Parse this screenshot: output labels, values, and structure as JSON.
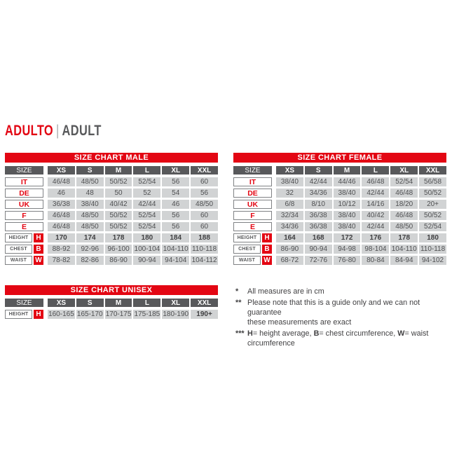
{
  "title": {
    "primary": "ADULTO",
    "separator": "|",
    "secondary": "ADULT"
  },
  "colors": {
    "accent_red": "#e30613",
    "header_gray": "#58595b",
    "cell_gray": "#d1d3d4",
    "value_text_gray": "#4e4f51",
    "notes_text": "#414042",
    "label_border_gray": "#808285"
  },
  "tables": [
    {
      "id": "male",
      "title": "SIZE CHART MALE",
      "corner": "SIZE",
      "columns": [
        "XS",
        "S",
        "M",
        "L",
        "XL",
        "XXL"
      ],
      "size_rows": [
        {
          "label": "IT",
          "values": [
            "46/48",
            "48/50",
            "50/52",
            "52/54",
            "56",
            "60"
          ]
        },
        {
          "label": "DE",
          "values": [
            "46",
            "48",
            "50",
            "52",
            "54",
            "56"
          ]
        },
        {
          "label": "UK",
          "values": [
            "36/38",
            "38/40",
            "40/42",
            "42/44",
            "46",
            "48/50"
          ]
        },
        {
          "label": "F",
          "values": [
            "46/48",
            "48/50",
            "50/52",
            "52/54",
            "56",
            "60"
          ]
        },
        {
          "label": "E",
          "values": [
            "46/48",
            "48/50",
            "50/52",
            "52/54",
            "56",
            "60"
          ]
        }
      ],
      "measure_rows": [
        {
          "label": "HEIGHT",
          "code": "H",
          "bold": true,
          "values": [
            "170",
            "174",
            "178",
            "180",
            "184",
            "188"
          ]
        },
        {
          "label": "CHEST",
          "code": "B",
          "bold": false,
          "values": [
            "88-92",
            "92-96",
            "96-100",
            "100-104",
            "104-110",
            "110-118"
          ]
        },
        {
          "label": "WAIST",
          "code": "W",
          "bold": false,
          "values": [
            "78-82",
            "82-86",
            "86-90",
            "90-94",
            "94-104",
            "104-112"
          ]
        }
      ]
    },
    {
      "id": "female",
      "title": "SIZE CHART FEMALE",
      "corner": "SIZE",
      "columns": [
        "XS",
        "S",
        "M",
        "L",
        "XL",
        "XXL"
      ],
      "size_rows": [
        {
          "label": "IT",
          "values": [
            "38/40",
            "42/44",
            "44/46",
            "46/48",
            "52/54",
            "56/58"
          ]
        },
        {
          "label": "DE",
          "values": [
            "32",
            "34/36",
            "38/40",
            "42/44",
            "46/48",
            "50/52"
          ]
        },
        {
          "label": "UK",
          "values": [
            "6/8",
            "8/10",
            "10/12",
            "14/16",
            "18/20",
            "20+"
          ]
        },
        {
          "label": "F",
          "values": [
            "32/34",
            "36/38",
            "38/40",
            "40/42",
            "46/48",
            "50/52"
          ]
        },
        {
          "label": "E",
          "values": [
            "34/36",
            "36/38",
            "38/40",
            "42/44",
            "48/50",
            "52/54"
          ]
        }
      ],
      "measure_rows": [
        {
          "label": "HEIGHT",
          "code": "H",
          "bold": true,
          "values": [
            "164",
            "168",
            "172",
            "176",
            "178",
            "180"
          ]
        },
        {
          "label": "CHEST",
          "code": "B",
          "bold": false,
          "values": [
            "86-90",
            "90-94",
            "94-98",
            "98-104",
            "104-110",
            "110-118"
          ]
        },
        {
          "label": "WAIST",
          "code": "W",
          "bold": false,
          "values": [
            "68-72",
            "72-76",
            "76-80",
            "80-84",
            "84-94",
            "94-102"
          ]
        }
      ]
    },
    {
      "id": "unisex",
      "title": "SIZE CHART UNISEX",
      "corner": "SIZE",
      "columns": [
        "XS",
        "S",
        "M",
        "L",
        "XL",
        "XXL"
      ],
      "size_rows": [],
      "measure_rows": [
        {
          "label": "HEIGHT",
          "code": "H",
          "bold": false,
          "bold_cells": [
            5
          ],
          "values": [
            "160-165",
            "165-170",
            "170-175",
            "175-185",
            "180-190",
            "190+"
          ]
        }
      ]
    }
  ],
  "notes": [
    {
      "marker": "*",
      "lines": [
        [
          {
            "t": "All measures are in cm"
          }
        ]
      ]
    },
    {
      "marker": "**",
      "lines": [
        [
          {
            "t": "Please note that this is a guide only and we can not guarantee"
          }
        ],
        [
          {
            "t": "these measurements are exact"
          }
        ]
      ]
    },
    {
      "marker": "***",
      "lines": [
        [
          {
            "b": "H"
          },
          {
            "t": "= height average, "
          },
          {
            "b": "B"
          },
          {
            "t": "= chest circumference, "
          },
          {
            "b": "W"
          },
          {
            "t": "= waist circumference"
          }
        ]
      ]
    }
  ]
}
